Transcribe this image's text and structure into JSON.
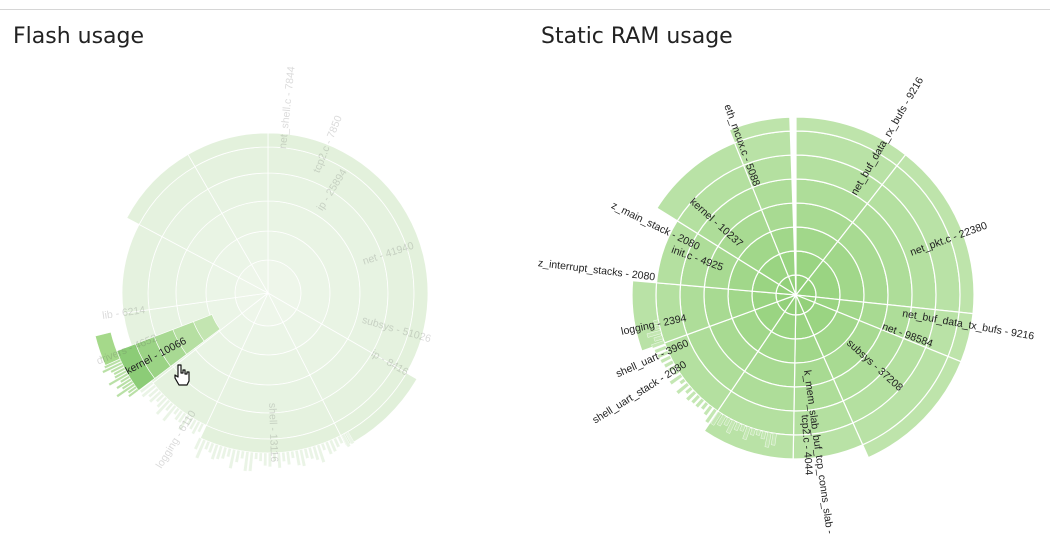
{
  "page": {
    "sections": [
      "flash",
      "ram"
    ]
  },
  "flash": {
    "title": "Flash usage",
    "highlight_color": "#a5d98a",
    "chart_data": {
      "type": "sunburst",
      "dimmed": true,
      "highlighted": "kernel",
      "segments": [
        {
          "label": "net - 41940",
          "value": 41940,
          "depth": 1
        },
        {
          "label": "subsys - 51026",
          "value": 51026,
          "depth": 1
        },
        {
          "label": "kernel - 10066",
          "value": 10066,
          "depth": 1,
          "highlighted": true
        },
        {
          "label": "drivers - 4652",
          "value": 4652,
          "depth": 1
        },
        {
          "label": "lib - 6214",
          "value": 6214,
          "depth": 1
        },
        {
          "label": "logging - 6110",
          "value": 6110,
          "depth": 2
        },
        {
          "label": "ip - 25894",
          "value": 25894,
          "depth": 2
        },
        {
          "label": "tcp2.c - 7850",
          "value": 7850,
          "depth": 2
        },
        {
          "label": "net_shell.c - 7844",
          "value": 7844,
          "depth": 2
        },
        {
          "label": "ip - 8416",
          "value": 8416,
          "depth": 2
        },
        {
          "label": "shell - 13116",
          "value": 13116,
          "depth": 2
        }
      ]
    }
  },
  "ram": {
    "title": "Static RAM usage",
    "chart_data": {
      "type": "sunburst",
      "segments": [
        {
          "label": "net_buf_data_rx_bufs - 9216",
          "value": 9216
        },
        {
          "label": "net_pkt.c - 22380",
          "value": 22380
        },
        {
          "label": "net_buf_data_tx_bufs - 9216",
          "value": 9216
        },
        {
          "label": "net - 98584",
          "value": 98584
        },
        {
          "label": "subsys - 37208",
          "value": 37208
        },
        {
          "label": "tcp2.c - 4044",
          "value": 4044
        },
        {
          "label": "k_mem_slab_buf_tcp_conns_slab -",
          "value": null
        },
        {
          "label": "shell_uart_stack - 2080",
          "value": 2080
        },
        {
          "label": "shell_uart - 3960",
          "value": 3960
        },
        {
          "label": "logging - 2394",
          "value": 2394
        },
        {
          "label": "z_interrupt_stacks - 2080",
          "value": 2080
        },
        {
          "label": "init.c - 4925",
          "value": 4925
        },
        {
          "label": "z_main_stack - 2080",
          "value": 2080
        },
        {
          "label": "kernel - 10237",
          "value": 10237
        },
        {
          "label": "eth_mcux.c - 5088",
          "value": 5088
        }
      ]
    }
  }
}
